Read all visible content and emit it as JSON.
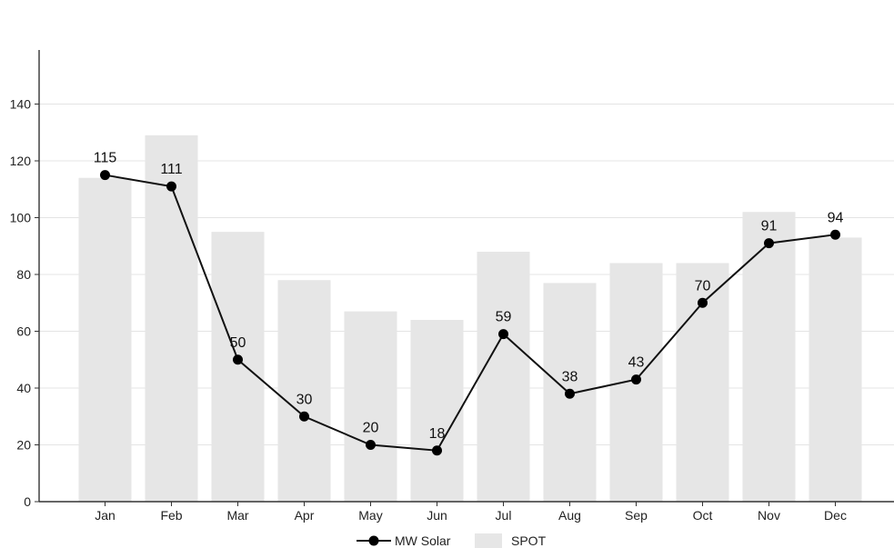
{
  "chart_data": {
    "type": "bar",
    "categories": [
      "Jan",
      "Feb",
      "Mar",
      "Apr",
      "May",
      "Jun",
      "Jul",
      "Aug",
      "Sep",
      "Oct",
      "Nov",
      "Dec"
    ],
    "series": [
      {
        "name": "SPOT",
        "type": "bar",
        "color": "#e6e6e6",
        "values": [
          114,
          129,
          95,
          78,
          67,
          64,
          88,
          77,
          84,
          84,
          102,
          93
        ]
      },
      {
        "name": "MW Solar",
        "type": "line",
        "color": "#111111",
        "marker": "circle",
        "values": [
          115,
          111,
          50,
          30,
          20,
          18,
          59,
          38,
          43,
          70,
          91,
          94
        ],
        "data_labels": [
          "115",
          "111",
          "50",
          "30",
          "20",
          "18",
          "59",
          "38",
          "43",
          "70",
          "91",
          "94"
        ]
      }
    ],
    "title": "",
    "xlabel": "",
    "ylabel": "",
    "ylim": [
      0,
      140
    ],
    "yticks": [
      0,
      20,
      40,
      60,
      80,
      100,
      120,
      140
    ],
    "grid": "horizontal",
    "legend_position": "bottom-center",
    "legend": [
      "MW Solar",
      "SPOT"
    ]
  }
}
